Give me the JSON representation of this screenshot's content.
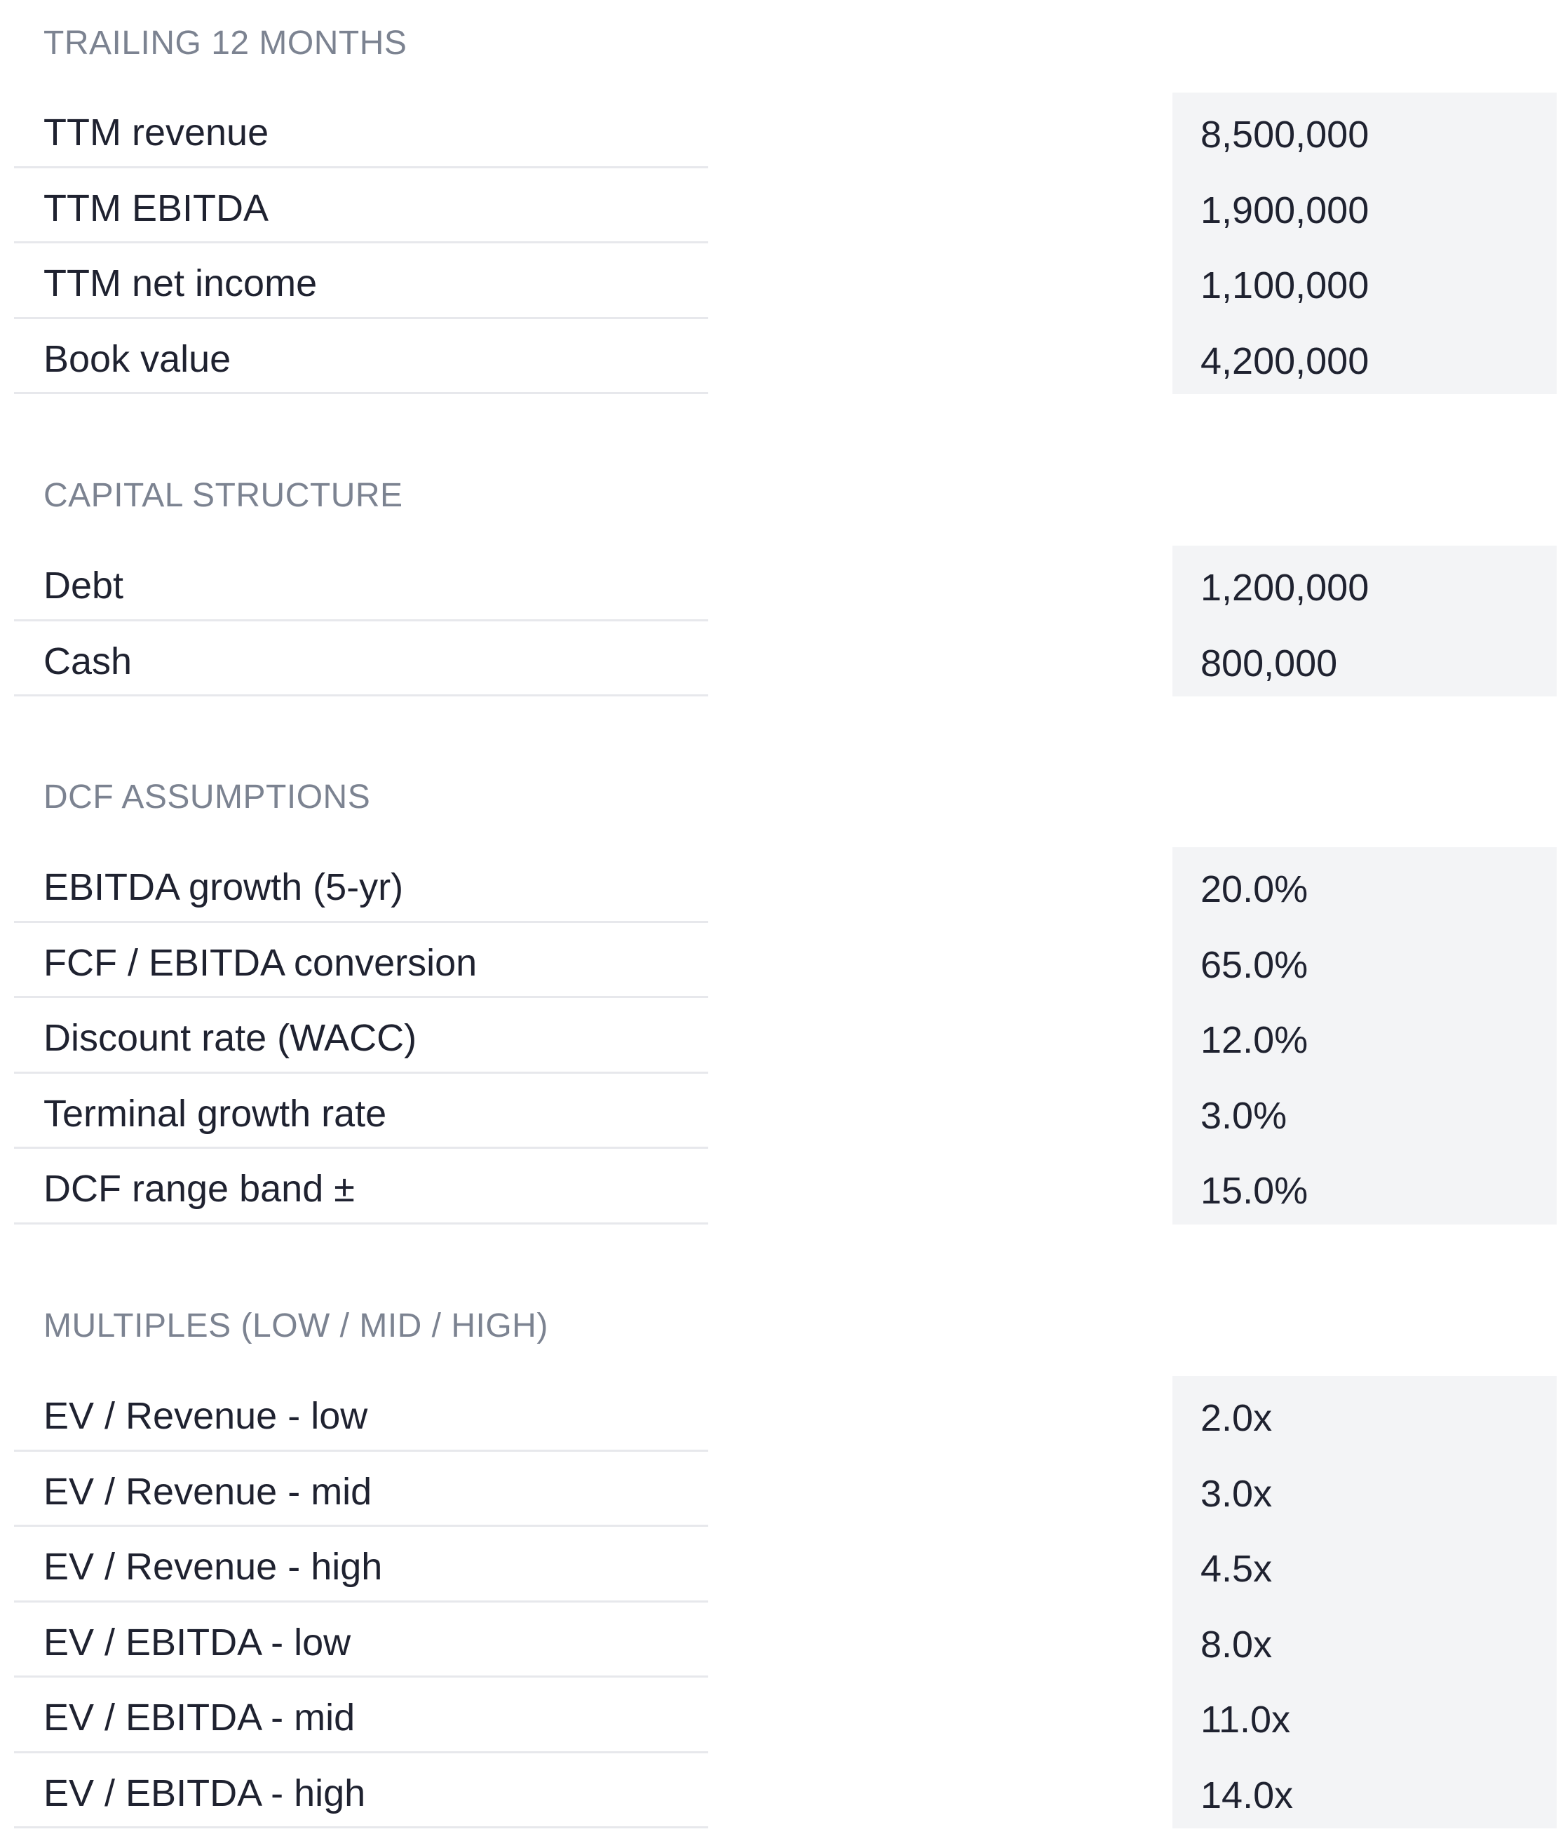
{
  "sections": [
    {
      "title": "TRAILING 12 MONTHS",
      "rows": [
        {
          "label": "TTM revenue",
          "value": "8,500,000"
        },
        {
          "label": "TTM EBITDA",
          "value": "1,900,000"
        },
        {
          "label": "TTM net income",
          "value": "1,100,000"
        },
        {
          "label": "Book value",
          "value": "4,200,000"
        }
      ]
    },
    {
      "title": "CAPITAL STRUCTURE",
      "rows": [
        {
          "label": "Debt",
          "value": "1,200,000"
        },
        {
          "label": "Cash",
          "value": "800,000"
        }
      ]
    },
    {
      "title": "DCF ASSUMPTIONS",
      "rows": [
        {
          "label": "EBITDA growth (5-yr)",
          "value": "20.0%"
        },
        {
          "label": "FCF / EBITDA conversion",
          "value": "65.0%"
        },
        {
          "label": "Discount rate (WACC)",
          "value": "12.0%"
        },
        {
          "label": "Terminal growth rate",
          "value": "3.0%"
        },
        {
          "label": "DCF range band ±",
          "value": "15.0%"
        }
      ]
    },
    {
      "title": "MULTIPLES (LOW / MID / HIGH)",
      "rows": [
        {
          "label": "EV / Revenue - low",
          "value": "2.0x"
        },
        {
          "label": "EV / Revenue - mid",
          "value": "3.0x"
        },
        {
          "label": "EV / Revenue - high",
          "value": "4.5x"
        },
        {
          "label": "EV / EBITDA - low",
          "value": "8.0x"
        },
        {
          "label": "EV / EBITDA - mid",
          "value": "11.0x"
        },
        {
          "label": "EV / EBITDA - high",
          "value": "14.0x"
        }
      ]
    }
  ]
}
